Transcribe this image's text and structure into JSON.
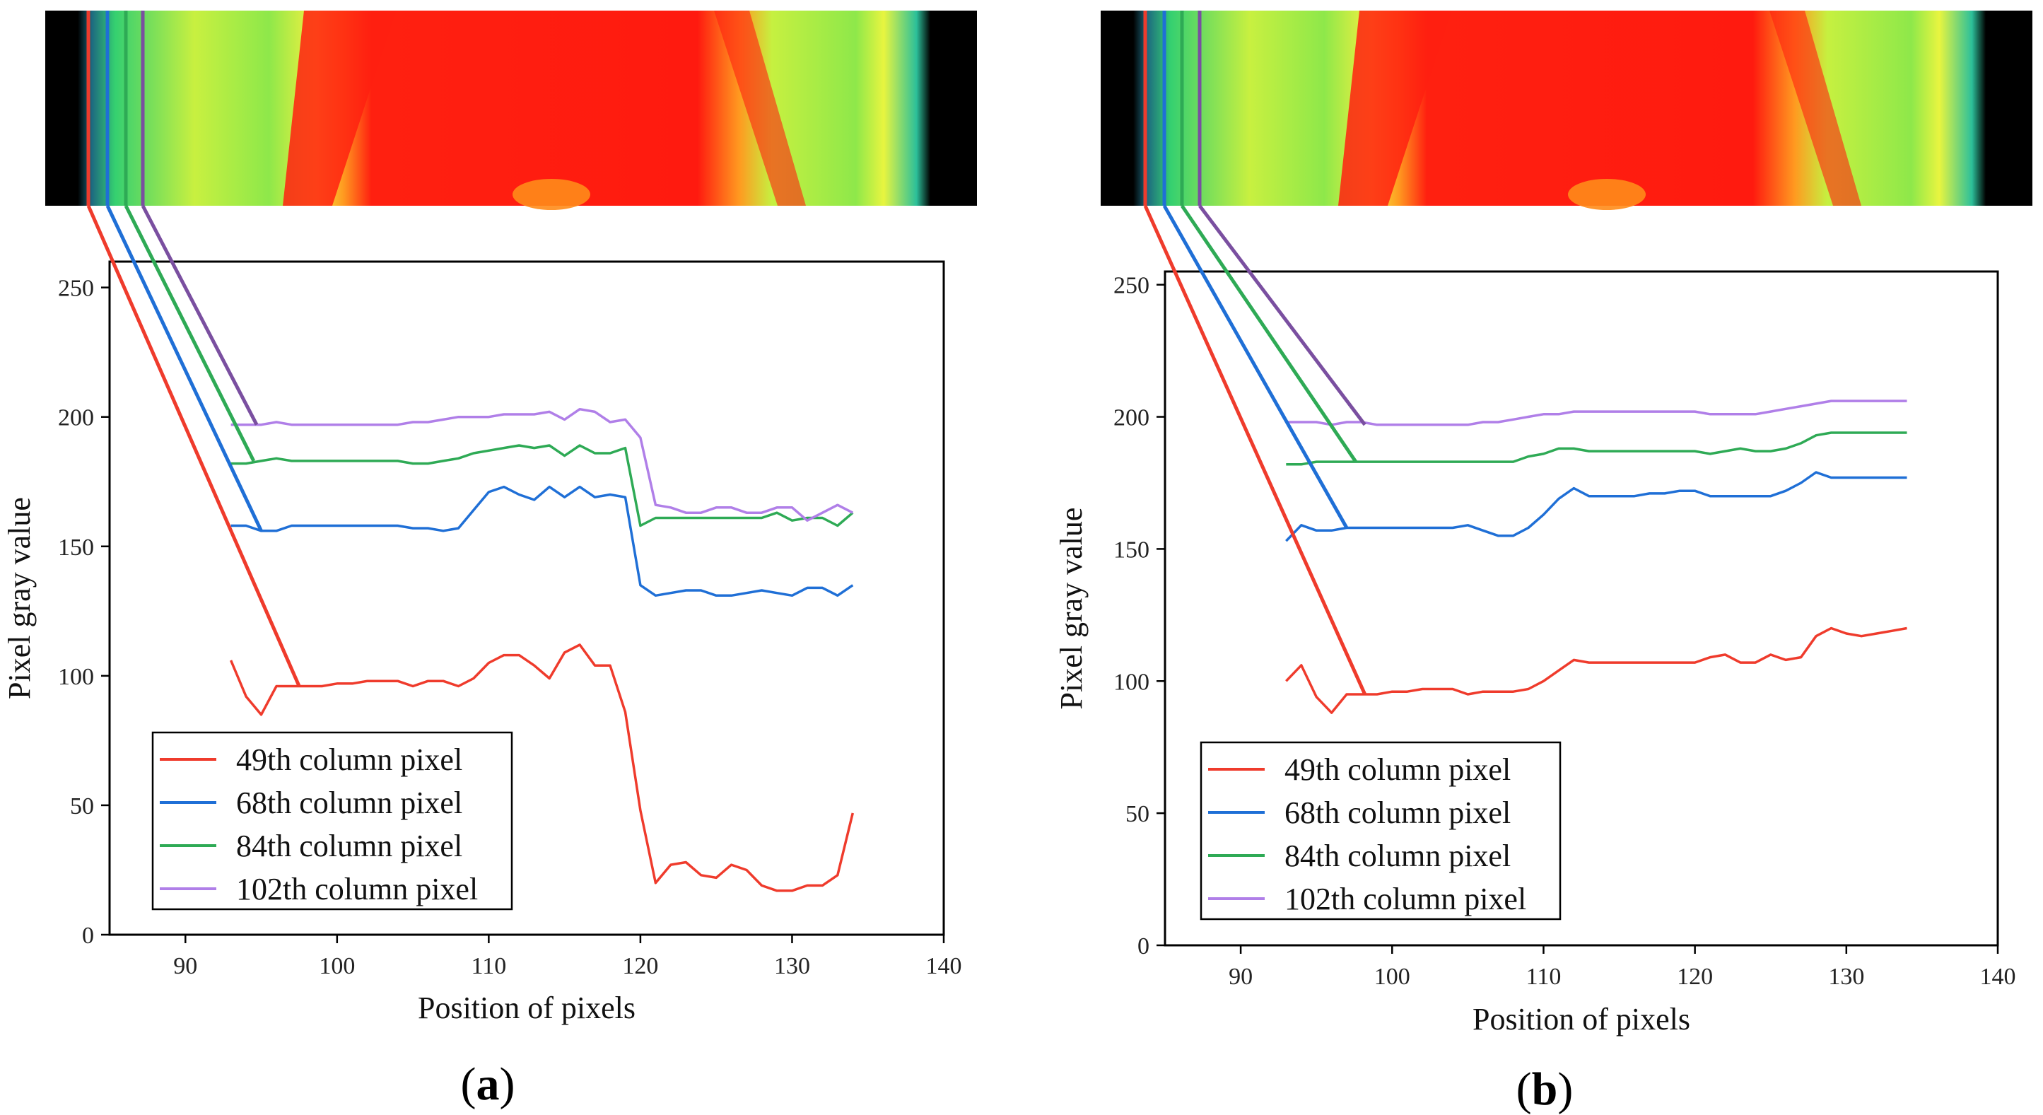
{
  "colors": {
    "red": "#ef3b2c",
    "blue": "#1f6fd6",
    "green": "#2eaa55",
    "purple": "#b07fe8",
    "dark_purple": "#7a4fa0"
  },
  "chart_data": [
    {
      "panel_label_open": "(",
      "panel_letter": "a",
      "panel_label_close": ")",
      "type": "line",
      "xlabel": "Position of pixels",
      "ylabel": "Pixel gray value",
      "xlim": [
        85,
        140
      ],
      "ylim": [
        0,
        260
      ],
      "xticks": [
        90,
        100,
        110,
        120,
        130,
        140
      ],
      "yticks": [
        0,
        50,
        100,
        150,
        200,
        250
      ],
      "x": [
        93,
        94,
        95,
        96,
        97,
        98,
        99,
        100,
        101,
        102,
        103,
        104,
        105,
        106,
        107,
        108,
        109,
        110,
        111,
        112,
        113,
        114,
        115,
        116,
        117,
        118,
        119,
        120,
        121,
        122,
        123,
        124,
        125,
        126,
        127,
        128,
        129,
        130,
        131,
        132,
        133,
        134
      ],
      "series": [
        {
          "name": "49th column pixel",
          "color": "#ef3b2c",
          "values": [
            106,
            92,
            85,
            96,
            96,
            96,
            96,
            97,
            97,
            98,
            98,
            98,
            96,
            98,
            98,
            96,
            99,
            105,
            108,
            108,
            104,
            99,
            109,
            112,
            104,
            104,
            86,
            48,
            20,
            27,
            28,
            23,
            22,
            27,
            25,
            19,
            17,
            17,
            19,
            19,
            23,
            47
          ]
        },
        {
          "name": "68th column pixel",
          "color": "#1f6fd6",
          "values": [
            158,
            158,
            156,
            156,
            158,
            158,
            158,
            158,
            158,
            158,
            158,
            158,
            157,
            157,
            156,
            157,
            164,
            171,
            173,
            170,
            168,
            173,
            169,
            173,
            169,
            170,
            169,
            135,
            131,
            132,
            133,
            133,
            131,
            131,
            132,
            133,
            132,
            131,
            134,
            134,
            131,
            135
          ]
        },
        {
          "name": "84th column pixel",
          "color": "#2eaa55",
          "values": [
            182,
            182,
            183,
            184,
            183,
            183,
            183,
            183,
            183,
            183,
            183,
            183,
            182,
            182,
            183,
            184,
            186,
            187,
            188,
            189,
            188,
            189,
            185,
            189,
            186,
            186,
            188,
            158,
            161,
            161,
            161,
            161,
            161,
            161,
            161,
            161,
            163,
            160,
            161,
            161,
            158,
            163
          ]
        },
        {
          "name": "102th column pixel",
          "color": "#b07fe8",
          "values": [
            197,
            197,
            197,
            198,
            197,
            197,
            197,
            197,
            197,
            197,
            197,
            197,
            198,
            198,
            199,
            200,
            200,
            200,
            201,
            201,
            201,
            202,
            199,
            203,
            202,
            198,
            199,
            192,
            166,
            165,
            163,
            163,
            165,
            165,
            163,
            163,
            165,
            165,
            160,
            163,
            166,
            163
          ]
        }
      ]
    },
    {
      "panel_label_open": "(",
      "panel_letter": "b",
      "panel_label_close": ")",
      "type": "line",
      "xlabel": "Position of pixels",
      "ylabel": "Pixel gray value",
      "xlim": [
        85,
        140
      ],
      "ylim": [
        0,
        255
      ],
      "xticks": [
        90,
        100,
        110,
        120,
        130,
        140
      ],
      "yticks": [
        0,
        50,
        100,
        150,
        200,
        250
      ],
      "x": [
        93,
        94,
        95,
        96,
        97,
        98,
        99,
        100,
        101,
        102,
        103,
        104,
        105,
        106,
        107,
        108,
        109,
        110,
        111,
        112,
        113,
        114,
        115,
        116,
        117,
        118,
        119,
        120,
        121,
        122,
        123,
        124,
        125,
        126,
        127,
        128,
        129,
        130,
        131,
        132,
        133,
        134
      ],
      "series": [
        {
          "name": "49th column pixel",
          "color": "#ef3b2c",
          "values": [
            100,
            106,
            94,
            88,
            95,
            95,
            95,
            96,
            96,
            97,
            97,
            97,
            95,
            96,
            96,
            96,
            97,
            100,
            104,
            108,
            107,
            107,
            107,
            107,
            107,
            107,
            107,
            107,
            109,
            110,
            107,
            107,
            110,
            108,
            109,
            117,
            120,
            118,
            117,
            118,
            119,
            120
          ]
        },
        {
          "name": "68th column pixel",
          "color": "#1f6fd6",
          "values": [
            153,
            159,
            157,
            157,
            158,
            158,
            158,
            158,
            158,
            158,
            158,
            158,
            159,
            157,
            155,
            155,
            158,
            163,
            169,
            173,
            170,
            170,
            170,
            170,
            171,
            171,
            172,
            172,
            170,
            170,
            170,
            170,
            170,
            172,
            175,
            179,
            177,
            177,
            177,
            177,
            177,
            177
          ]
        },
        {
          "name": "84th column pixel",
          "color": "#2eaa55",
          "values": [
            182,
            182,
            183,
            183,
            183,
            183,
            183,
            183,
            183,
            183,
            183,
            183,
            183,
            183,
            183,
            183,
            185,
            186,
            188,
            188,
            187,
            187,
            187,
            187,
            187,
            187,
            187,
            187,
            186,
            187,
            188,
            187,
            187,
            188,
            190,
            193,
            194,
            194,
            194,
            194,
            194,
            194
          ]
        },
        {
          "name": "102th column pixel",
          "color": "#b07fe8",
          "values": [
            198,
            198,
            198,
            197,
            198,
            198,
            197,
            197,
            197,
            197,
            197,
            197,
            197,
            198,
            198,
            199,
            200,
            201,
            201,
            202,
            202,
            202,
            202,
            202,
            202,
            202,
            202,
            202,
            201,
            201,
            201,
            201,
            202,
            203,
            204,
            205,
            206,
            206,
            206,
            206,
            206,
            206
          ]
        }
      ]
    }
  ]
}
